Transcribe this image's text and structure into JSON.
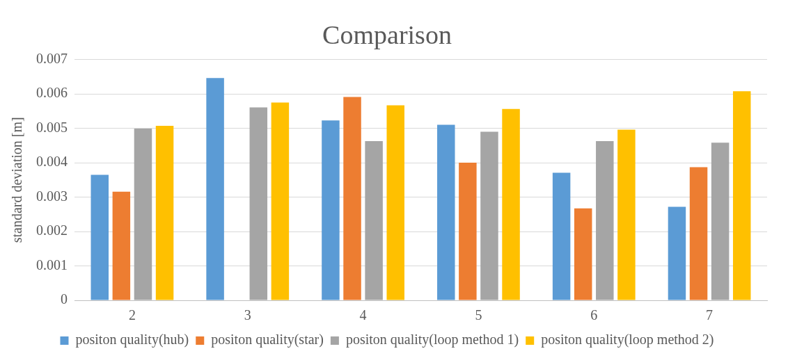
{
  "chart_data": {
    "type": "bar",
    "title": "Comparison",
    "ylabel": "standard deviation [m]",
    "categories": [
      "2",
      "3",
      "4",
      "5",
      "6",
      "7"
    ],
    "series": [
      {
        "name": "positon quality(hub)",
        "color": "#5b9bd5",
        "values": [
          0.00365,
          0.00646,
          0.00523,
          0.0051,
          0.00371,
          0.00272
        ]
      },
      {
        "name": "positon quality(star)",
        "color": "#ed7d31",
        "values": [
          0.00316,
          null,
          0.00591,
          0.004,
          0.00267,
          0.00387
        ]
      },
      {
        "name": "positon quality(loop method 1)",
        "color": "#a5a5a5",
        "values": [
          0.00499,
          0.00561,
          0.00463,
          0.0049,
          0.00463,
          0.00458
        ]
      },
      {
        "name": "positon quality(loop method 2)",
        "color": "#ffc000",
        "values": [
          0.00507,
          0.00575,
          0.00567,
          0.00556,
          0.00496,
          0.00608
        ]
      }
    ],
    "ylim": [
      0,
      0.007
    ],
    "yticks": [
      0,
      0.001,
      0.002,
      0.003,
      0.004,
      0.005,
      0.006,
      0.007
    ],
    "grid": "y",
    "legend": "bottom"
  }
}
